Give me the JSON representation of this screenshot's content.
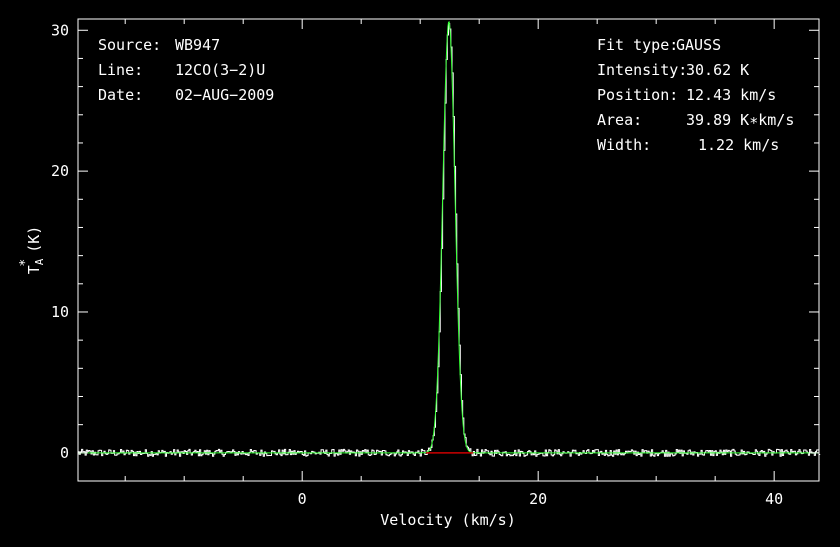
{
  "info_left": [
    {
      "label": "Source:",
      "value": "WB947"
    },
    {
      "label": "Line:",
      "value": "12CO(3−2)U"
    },
    {
      "label": "Date:",
      "value": "02−AUG−2009"
    }
  ],
  "info_right": [
    {
      "label": "Fit type:",
      "value": "GAUSS"
    },
    {
      "label": "Intensity:",
      "value": "30.62 K"
    },
    {
      "label": "Position:",
      "value": "12.43 km/s"
    },
    {
      "label": "Area:",
      "value": "39.89 K∗km/s"
    },
    {
      "label": "Width:",
      "value": "1.22 km/s"
    }
  ],
  "colors": {
    "background": "#000000",
    "axes": "#ffffff",
    "spectrum": "#ffffff",
    "fit": "#33ff33",
    "baseline": "#cc0000"
  },
  "chart_data": {
    "type": "line",
    "xlabel": "Velocity (km/s)",
    "ylabel_main": "T",
    "ylabel_sup": "*",
    "ylabel_sub": "A",
    "ylabel_unit": "(K)",
    "xlim": [
      -19,
      43.8
    ],
    "ylim": [
      -2,
      30.8
    ],
    "xticks": [
      0,
      20,
      40
    ],
    "xtick_labels": [
      "0",
      "20",
      "40"
    ],
    "yticks": [
      0,
      10,
      20,
      30
    ],
    "ytick_labels": [
      "0",
      "10",
      "20",
      "30"
    ],
    "grid": false,
    "series": [
      {
        "kind": "spectrum",
        "x_start": -19,
        "x_step": 0.1,
        "noise_amplitude": 0.25,
        "gauss": {
          "amplitude": 30.62,
          "center": 12.43,
          "fwhm": 1.22
        }
      },
      {
        "kind": "fit",
        "gauss": {
          "amplitude": 30.62,
          "center": 12.43,
          "fwhm": 1.22
        }
      },
      {
        "kind": "baseline",
        "x": [
          10.5,
          14.5
        ],
        "y": [
          0,
          0
        ]
      }
    ]
  }
}
